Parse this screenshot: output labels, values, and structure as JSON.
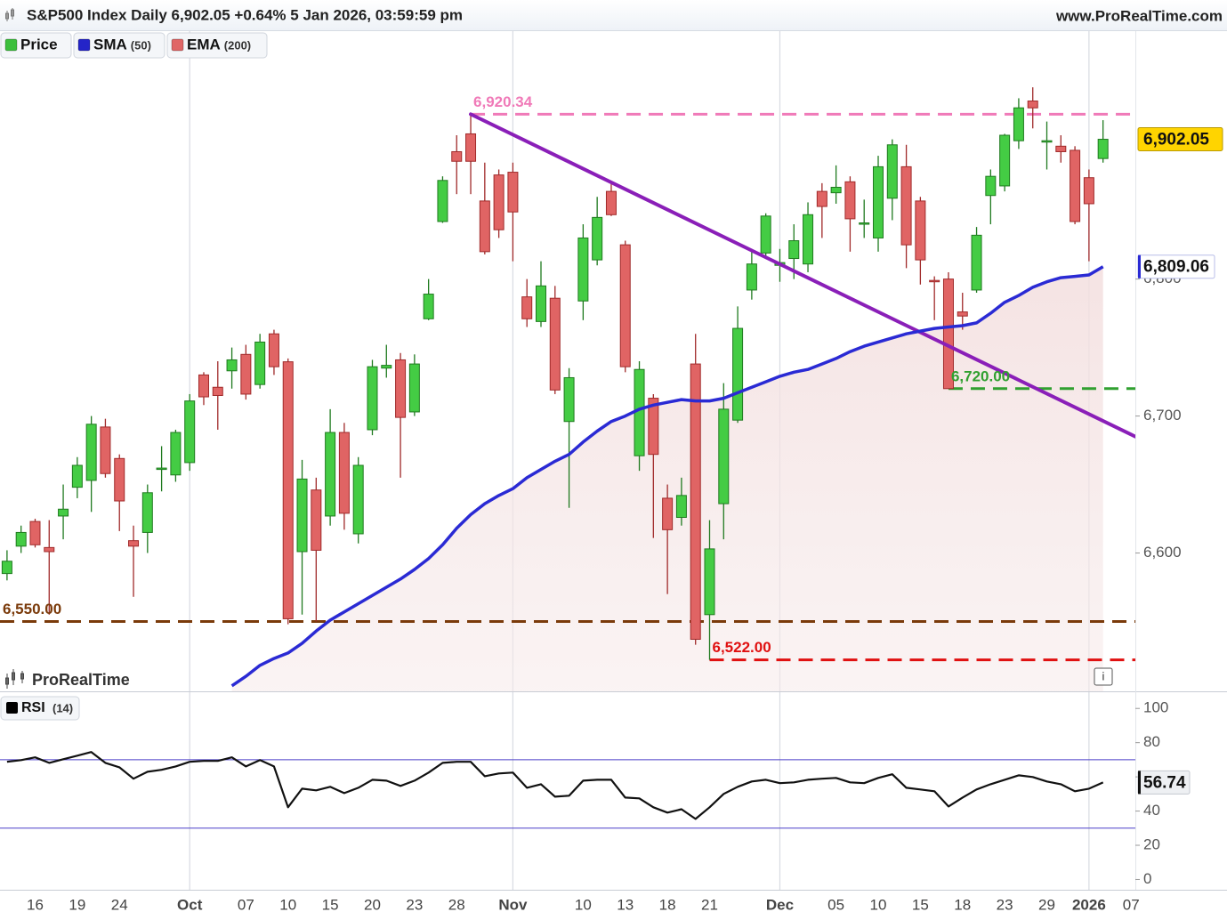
{
  "chart_data": [
    {
      "type": "candlestick",
      "title": "S&P500 Index Daily 6,902.05 +0.64% 5 Jan 2026, 03:59:59 pm",
      "source": "www.ProRealTime.com",
      "watermark": "ProRealTime",
      "legend": [
        {
          "name": "Price",
          "color": "#3cbf3c"
        },
        {
          "name": "SMA",
          "param": "(50)",
          "color": "#2424c8"
        },
        {
          "name": "EMA",
          "param": "(200)",
          "color": "#e06666"
        }
      ],
      "xlim": [
        -0.5,
        80.3
      ],
      "xticks": [
        {
          "value": 2,
          "label": "16"
        },
        {
          "value": 5,
          "label": "19"
        },
        {
          "value": 8,
          "label": "24"
        },
        {
          "value": 13,
          "label": "Oct",
          "grid": true
        },
        {
          "value": 17,
          "label": "07"
        },
        {
          "value": 20,
          "label": "10"
        },
        {
          "value": 23,
          "label": "15"
        },
        {
          "value": 26,
          "label": "20"
        },
        {
          "value": 29,
          "label": "23"
        },
        {
          "value": 32,
          "label": "28"
        },
        {
          "value": 36,
          "label": "Nov",
          "grid": true
        },
        {
          "value": 41,
          "label": "10"
        },
        {
          "value": 44,
          "label": "13"
        },
        {
          "value": 47,
          "label": "18"
        },
        {
          "value": 50,
          "label": "21"
        },
        {
          "value": 55,
          "label": "Dec",
          "grid": true
        },
        {
          "value": 59,
          "label": "05"
        },
        {
          "value": 62,
          "label": "10"
        },
        {
          "value": 65,
          "label": "15"
        },
        {
          "value": 68,
          "label": "18"
        },
        {
          "value": 71,
          "label": "23"
        },
        {
          "value": 74,
          "label": "29"
        },
        {
          "value": 77,
          "label": "2026",
          "grid": true
        },
        {
          "value": 80,
          "label": "07"
        }
      ],
      "ylim": [
        6499,
        6981
      ],
      "yticks": [
        {
          "value": 6600,
          "label": "6,600"
        },
        {
          "value": 6700,
          "label": "6,700"
        },
        {
          "value": 6800,
          "label": "6,800"
        }
      ],
      "ohlc": {
        "up_color": "#44cc44",
        "down_color": "#e06464",
        "open": [
          6585,
          6605,
          6623,
          6604,
          6627,
          6648,
          6653,
          6692,
          6669,
          6609,
          6615,
          6661,
          6657,
          6666,
          6730,
          6721,
          6733,
          6745,
          6723,
          6760,
          6739.6,
          6601,
          6646,
          6627,
          6688,
          6614,
          6690,
          6735,
          6741,
          6703,
          6771,
          6842,
          6893,
          6906,
          6857,
          6876,
          6878,
          6787,
          6769,
          6786,
          6696,
          6784,
          6814,
          6864,
          6825,
          6671,
          6713,
          6640,
          6626,
          6738,
          6555,
          6636,
          6697,
          6792,
          6819,
          6810,
          6815,
          6811,
          6864,
          6863,
          6871,
          6841,
          6830,
          6859,
          6882,
          6857,
          6799,
          6800,
          6776,
          6792,
          6861,
          6868,
          6901,
          6930,
          6900,
          6897,
          6894,
          6874,
          6888
        ],
        "high": [
          6602,
          6620,
          6625,
          6624,
          6650,
          6670,
          6700,
          6698,
          6672,
          6620,
          6650,
          6678,
          6690,
          6716,
          6732,
          6740,
          6750,
          6752,
          6760,
          6763,
          6742,
          6668,
          6655,
          6705,
          6695,
          6670,
          6741,
          6752,
          6746,
          6745,
          6800,
          6875,
          6905,
          6920.34,
          6885,
          6880,
          6885,
          6800,
          6813,
          6795,
          6735,
          6840,
          6860,
          6870,
          6828,
          6740,
          6716,
          6650,
          6655,
          6760,
          6624,
          6724,
          6780,
          6822,
          6848,
          6822,
          6840,
          6856,
          6870,
          6883,
          6875,
          6858,
          6890,
          6902,
          6898,
          6860,
          6802,
          6805,
          6790,
          6838,
          6880,
          6906,
          6932,
          6940,
          6915,
          6905,
          6897,
          6880,
          6916
        ],
        "low": [
          6580,
          6600,
          6604,
          6555,
          6610,
          6640,
          6630,
          6655,
          6616,
          6568,
          6600,
          6645,
          6652,
          6660,
          6708,
          6690,
          6720,
          6712,
          6720,
          6730,
          6548,
          6555,
          6550,
          6620,
          6617,
          6607,
          6686,
          6728,
          6655,
          6700,
          6770,
          6841,
          6862,
          6862,
          6818,
          6830,
          6813,
          6765,
          6765,
          6716,
          6633,
          6770,
          6810,
          6846,
          6732,
          6660,
          6611,
          6570,
          6620,
          6533,
          6522,
          6610,
          6695,
          6785,
          6815,
          6798,
          6800,
          6805,
          6830,
          6855,
          6820,
          6830,
          6820,
          6843,
          6808,
          6796,
          6770,
          6720,
          6763,
          6790,
          6840,
          6864,
          6895,
          6910,
          6880,
          6885,
          6840,
          6813,
          6885
        ],
        "close": [
          6594,
          6615,
          6606,
          6601,
          6632,
          6664,
          6694,
          6658,
          6638,
          6605,
          6644,
          6662,
          6688,
          6711,
          6714,
          6715,
          6741,
          6716,
          6754,
          6736,
          6552,
          6654,
          6602,
          6688,
          6629,
          6664,
          6736,
          6737,
          6699,
          6738,
          6789,
          6872,
          6886,
          6886,
          6820,
          6836,
          6849,
          6771,
          6795,
          6719,
          6728,
          6830,
          6845,
          6847,
          6736,
          6734,
          6672,
          6617,
          6642,
          6537,
          6603,
          6705,
          6764,
          6811,
          6846,
          6812,
          6828,
          6847,
          6853,
          6867,
          6844,
          6841,
          6882,
          6898,
          6825,
          6814,
          6798,
          6720,
          6773,
          6832,
          6875,
          6905,
          6925,
          6925,
          6901,
          6893,
          6842,
          6855,
          6902.05
        ],
        "value_labels": [
          null,
          null,
          null,
          null,
          null,
          null,
          null,
          null,
          null,
          null,
          null,
          null,
          null,
          null,
          null,
          null,
          null,
          null,
          null,
          null,
          null,
          null,
          null,
          null,
          null,
          null,
          null,
          null,
          null,
          null,
          null,
          null,
          null,
          null,
          null,
          null,
          null,
          null,
          null,
          null,
          null,
          null,
          null,
          null,
          null,
          null,
          null,
          null,
          null,
          null,
          null,
          null,
          null,
          null,
          null,
          null,
          null,
          null,
          null,
          null,
          null,
          null,
          null,
          null,
          null,
          null,
          null,
          null,
          null,
          null,
          null,
          null,
          null,
          null,
          null,
          null,
          null,
          null,
          "6,902.05"
        ]
      },
      "series": [
        {
          "legend": 1,
          "color": "#2a2ad4",
          "values": [
            null,
            null,
            null,
            null,
            null,
            null,
            null,
            null,
            null,
            null,
            null,
            null,
            null,
            null,
            null,
            null,
            6503,
            6510,
            6518,
            6523,
            6527,
            6534,
            6543,
            6551,
            6557,
            6563,
            6569,
            6575,
            6581,
            6588,
            6596,
            6606,
            6618,
            6628,
            6636,
            6642,
            6647,
            6655,
            6661,
            6667,
            6672,
            6681,
            6689,
            6696,
            6700,
            6705,
            6708,
            6710,
            6712,
            6711,
            6711,
            6713,
            6717,
            6721,
            6725,
            6729,
            6732,
            6734,
            6738,
            6742,
            6747,
            6751,
            6754,
            6757,
            6760,
            6762,
            6764,
            6765,
            6766,
            6768,
            6775,
            6783,
            6788,
            6794,
            6798,
            6801,
            6802,
            6803,
            6809.06
          ],
          "value_labels": [
            null,
            null,
            null,
            null,
            null,
            null,
            null,
            null,
            null,
            null,
            null,
            null,
            null,
            null,
            null,
            null,
            null,
            null,
            null,
            null,
            null,
            null,
            null,
            null,
            null,
            null,
            null,
            null,
            null,
            null,
            null,
            null,
            null,
            null,
            null,
            null,
            null,
            null,
            null,
            null,
            null,
            null,
            null,
            null,
            null,
            null,
            null,
            null,
            null,
            null,
            null,
            null,
            null,
            null,
            null,
            null,
            null,
            null,
            null,
            null,
            null,
            null,
            null,
            null,
            null,
            null,
            null,
            null,
            null,
            null,
            null,
            null,
            null,
            null,
            null,
            null,
            null,
            null,
            "6,809.06"
          ]
        }
      ],
      "levels": [
        {
          "value": 6920.34,
          "label": "6,920.34",
          "color": "#f07ab8",
          "start": 33
        },
        {
          "value": 6550,
          "label": "6,550.00",
          "color": "#7a3a0a",
          "start": -0.5
        },
        {
          "value": 6720,
          "label": "6,720.00",
          "color": "#30a030",
          "start": 67
        },
        {
          "value": 6522,
          "label": "6,522.00",
          "color": "#e01010",
          "start": 50
        }
      ],
      "trendline": {
        "color": "#8a1fb8",
        "x": [
          33,
          80.3
        ],
        "y": [
          6920.34,
          6685
        ]
      }
    },
    {
      "type": "line",
      "title": "RSI",
      "param": "(14)",
      "ylim": [
        -6,
        110
      ],
      "yticks": [
        0,
        20,
        40,
        60,
        80,
        100
      ],
      "levels": [
        70,
        30
      ],
      "series": [
        {
          "color": "#111111",
          "values": [
            68.8,
            69.8,
            71.4,
            68.2,
            70.3,
            72.4,
            74.5,
            68.2,
            65.6,
            58.9,
            63,
            64.1,
            66.1,
            68.8,
            69.3,
            69.3,
            71.4,
            66.1,
            69.8,
            66.1,
            42.2,
            53.1,
            52.1,
            54.2,
            50.5,
            53.6,
            58.3,
            57.8,
            54.7,
            57.8,
            62.5,
            68.2,
            68.8,
            68.8,
            60.4,
            62,
            62.5,
            53.6,
            55.7,
            48.4,
            49,
            57.8,
            58.3,
            58.3,
            47.9,
            47.4,
            42.2,
            39.1,
            41.1,
            35.4,
            42.2,
            50,
            54.2,
            57.3,
            58.3,
            56.3,
            56.8,
            58.3,
            58.9,
            59.4,
            56.8,
            56.3,
            59.4,
            61.5,
            53.6,
            52.6,
            51.6,
            42.7,
            47.9,
            52.6,
            55.7,
            58.3,
            60.9,
            59.9,
            57.3,
            55.7,
            51.6,
            53.1,
            56.74
          ],
          "value_labels": [
            null,
            null,
            null,
            null,
            null,
            null,
            null,
            null,
            null,
            null,
            null,
            null,
            null,
            null,
            null,
            null,
            null,
            null,
            null,
            null,
            null,
            null,
            null,
            null,
            null,
            null,
            null,
            null,
            null,
            null,
            null,
            null,
            null,
            null,
            null,
            null,
            null,
            null,
            null,
            null,
            null,
            null,
            null,
            null,
            null,
            null,
            null,
            null,
            null,
            null,
            null,
            null,
            null,
            null,
            null,
            null,
            null,
            null,
            null,
            null,
            null,
            null,
            null,
            null,
            null,
            null,
            null,
            null,
            null,
            null,
            null,
            null,
            null,
            null,
            null,
            null,
            null,
            null,
            "56.74"
          ]
        }
      ]
    }
  ]
}
